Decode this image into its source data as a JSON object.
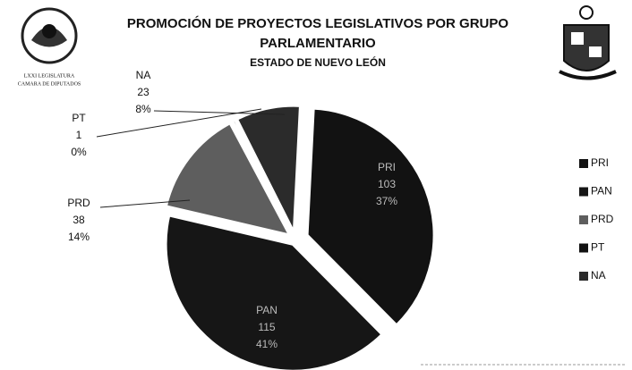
{
  "header": {
    "logo_caption": [
      "LXXI LEGISLATURA",
      "CAMARA DE DIPUTADOS"
    ]
  },
  "chart_data": {
    "type": "pie",
    "title": [
      "PROMOCIÓN DE PROYECTOS LEGISLATIVOS POR GRUPO",
      "PARLAMENTARIO"
    ],
    "subtitle": "ESTADO DE NUEVO LEÓN",
    "categories": [
      "PRI",
      "PAN",
      "PRD",
      "PT",
      "NA"
    ],
    "values": [
      103,
      115,
      38,
      1,
      23
    ],
    "value_labels": [
      "37%",
      "41%",
      "14%",
      "0%",
      "8%"
    ],
    "colors": [
      "#121212",
      "#161616",
      "#5e5e5e",
      "#121212",
      "#2b2b2b"
    ],
    "legend": "right"
  }
}
